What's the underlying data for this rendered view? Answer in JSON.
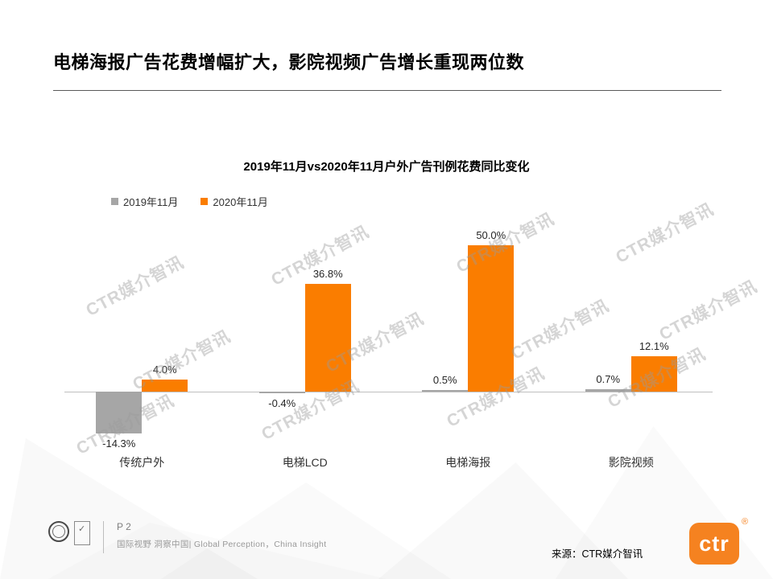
{
  "slide": {
    "title": "电梯海报广告花费增幅扩大，影院视频广告增长重现两位数",
    "page_label": "P 2",
    "tagline": "国际视野 洞察中国| Global Perception，China Insight",
    "source": "来源：CTR媒介智讯",
    "logo_text": "ctr",
    "logo_reg": "®",
    "watermark": "CTR媒介智讯"
  },
  "colors": {
    "accent_orange": "#FA7D00",
    "logo_orange": "#F58220",
    "series_gray": "#A6A6A6",
    "axis_gray": "#BFBFBF"
  },
  "chart_data": {
    "type": "bar",
    "title": "2019年11月vs2020年11月户外广告刊例花费同比变化",
    "categories": [
      "传统户外",
      "电梯LCD",
      "电梯海报",
      "影院视频"
    ],
    "series": [
      {
        "name": "2019年11月",
        "color": "#A6A6A6",
        "values": [
          -14.3,
          -0.4,
          0.5,
          0.7
        ]
      },
      {
        "name": "2020年11月",
        "color": "#FA7D00",
        "values": [
          4.0,
          36.8,
          50.0,
          12.1
        ]
      }
    ],
    "value_format": "percent_one_decimal",
    "ylim": [
      -20,
      55
    ],
    "grid": false,
    "legend_position": "top-left"
  }
}
